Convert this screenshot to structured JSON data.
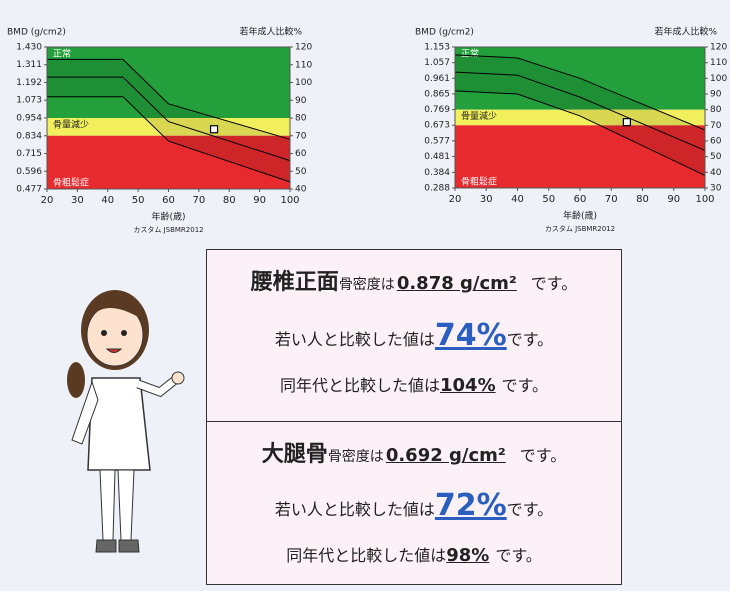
{
  "chart_data": [
    {
      "type": "zone",
      "y_title": "BMD (g/cm2)",
      "y2_title": "若年成人比較%",
      "x_title": "年齢(歳)",
      "note": "カスタム JSBMR2012",
      "xlim": [
        20,
        100
      ],
      "xticks": [
        20,
        30,
        40,
        50,
        60,
        70,
        80,
        90,
        100
      ],
      "ylim": [
        0.477,
        1.43
      ],
      "yticks": [
        {
          "value": 1.43,
          "label": "1.430"
        },
        1.311,
        1.192,
        1.073,
        0.954,
        0.834,
        0.715,
        0.596,
        0.477
      ],
      "y2lim": [
        40,
        120
      ],
      "y2ticks": [
        40,
        50,
        60,
        70,
        80,
        90,
        100,
        110,
        120
      ],
      "zones": [
        {
          "name": "正常",
          "color": "#23a03b",
          "from": 80,
          "to": 120
        },
        {
          "name": "骨量減少",
          "color": "#f2ef5c",
          "from": 70,
          "to": 80
        },
        {
          "name": "骨粗鬆症",
          "color": "#e62a2e",
          "from": 40,
          "to": 70
        }
      ],
      "curve_x": [
        20,
        45,
        60,
        100
      ],
      "curve_color": "#000000",
      "curves": [
        {
          "axis": "y2",
          "values": [
            113,
            113,
            88,
            68
          ]
        },
        {
          "axis": "y2",
          "values": [
            103,
            103,
            78,
            56
          ]
        },
        {
          "axis": "y2",
          "values": [
            92,
            92,
            67,
            44
          ]
        }
      ],
      "point": {
        "x": 75,
        "y": 0.878
      }
    },
    {
      "type": "zone",
      "y_title": "BMD (g/cm2)",
      "y2_title": "若年成人比較%",
      "x_title": "年齢(歳)",
      "note": "カスタム JSBMR2012",
      "xlim": [
        20,
        100
      ],
      "xticks": [
        20,
        30,
        40,
        50,
        60,
        70,
        80,
        90,
        100
      ],
      "ylim": [
        0.288,
        1.153
      ],
      "yticks": [
        1.153,
        1.057,
        0.961,
        0.865,
        0.769,
        0.673,
        0.577,
        0.481,
        0.384,
        0.288
      ],
      "y2lim": [
        30,
        120
      ],
      "y2ticks": [
        30,
        40,
        50,
        60,
        70,
        80,
        90,
        100,
        110,
        120
      ],
      "zones": [
        {
          "name": "正常",
          "color": "#23a03b",
          "from": 80,
          "to": 120
        },
        {
          "name": "骨量減少",
          "color": "#f2ef5c",
          "from": 70,
          "to": 80
        },
        {
          "name": "骨粗鬆症",
          "color": "#e62a2e",
          "from": 30,
          "to": 70
        }
      ],
      "curve_x": [
        20,
        40,
        60,
        100
      ],
      "curve_color": "#000000",
      "curves": [
        {
          "axis": "y2",
          "values": [
            115,
            113,
            100,
            67
          ]
        },
        {
          "axis": "y2",
          "values": [
            104,
            102,
            88,
            54
          ]
        },
        {
          "axis": "y2",
          "values": [
            92,
            90,
            76,
            38
          ]
        }
      ],
      "point": {
        "x": 75,
        "y": 0.692
      }
    }
  ],
  "report": {
    "sections": [
      {
        "site": "腰椎正面",
        "bmd_label": "骨密度は",
        "bmd": "0.878 g/cm²",
        "bmd_tail": "です。",
        "lines": [
          {
            "text": "若い人と比較した値は",
            "value": "74%",
            "tail": "です。"
          },
          {
            "text": "同年代と比較した値は",
            "value": "104%",
            "tail": "です。"
          }
        ]
      },
      {
        "site": "大腿骨",
        "bmd_label": "骨密度は",
        "bmd": "0.692 g/cm²",
        "bmd_tail": "です。",
        "lines": [
          {
            "text": "若い人と比較した値は",
            "value": "72%",
            "tail": "です。"
          },
          {
            "text": "同年代と比較した値は",
            "value": "98%",
            "tail": "です。"
          }
        ]
      }
    ]
  }
}
